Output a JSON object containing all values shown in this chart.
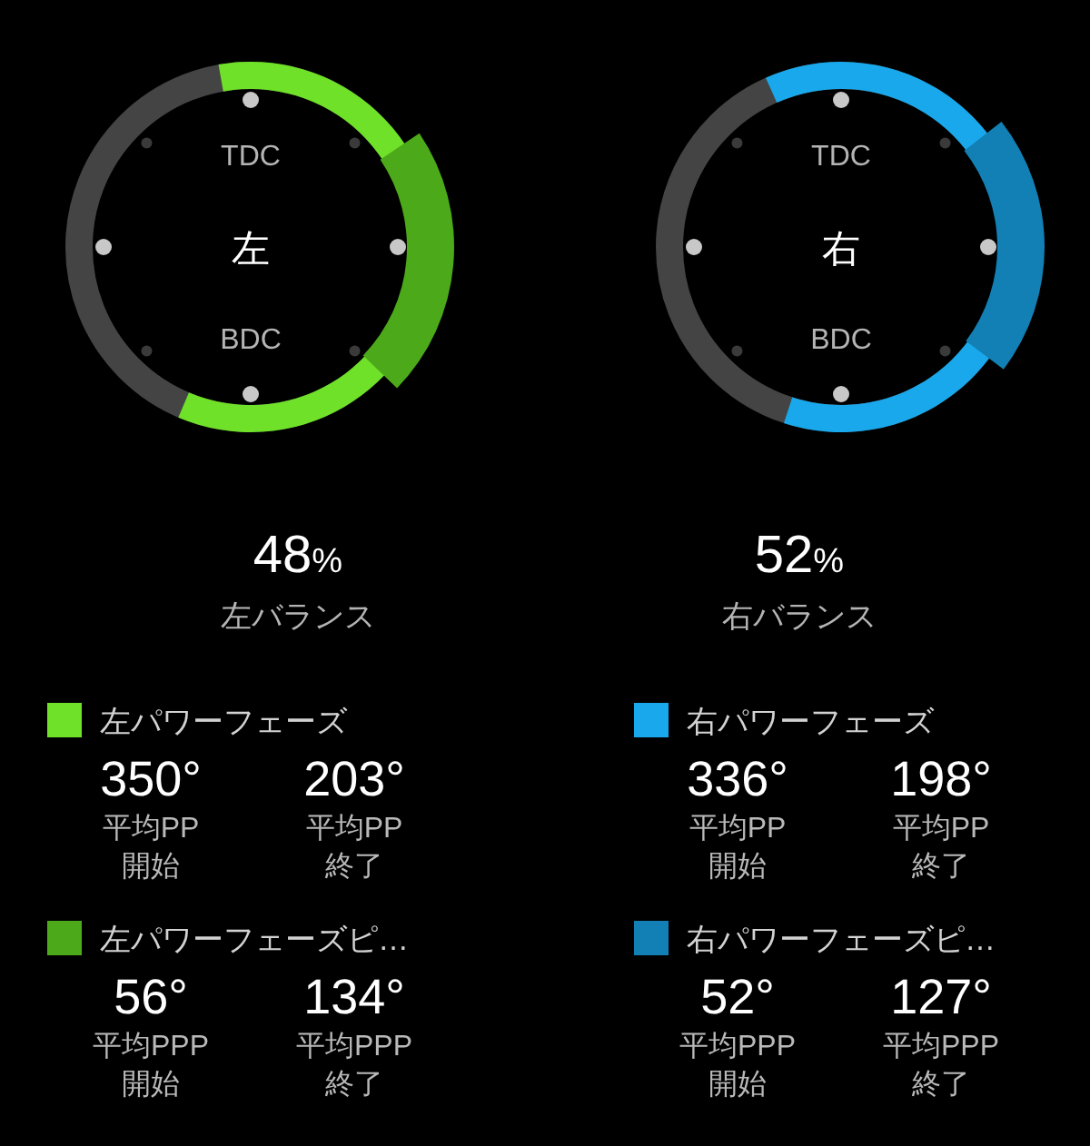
{
  "chart_data": [
    {
      "type": "other",
      "title": "左",
      "annotations": [
        "TDC",
        "BDC",
        "平均PP",
        "平均PPP"
      ],
      "categories": [
        "開始",
        "終了"
      ],
      "series": [
        {
          "name": "左パワーフェーズ",
          "color": "#6ee128",
          "values": [
            350,
            203
          ],
          "value_labels": [
            "350°",
            "203°"
          ]
        },
        {
          "name": "左パワーフェーズピ…",
          "color": "#4caa1a",
          "values": [
            56,
            134
          ],
          "value_labels": [
            "56°",
            "134°"
          ]
        }
      ]
    },
    {
      "type": "other",
      "title": "右",
      "annotations": [
        "TDC",
        "BDC",
        "平均PP",
        "平均PPP"
      ],
      "categories": [
        "開始",
        "終了"
      ],
      "series": [
        {
          "name": "右パワーフェーズ",
          "color": "#18a8eb",
          "values": [
            336,
            198
          ],
          "value_labels": [
            "336°",
            "198°"
          ]
        },
        {
          "name": "右パワーフェーズピ…",
          "color": "#1280b4",
          "values": [
            52,
            127
          ],
          "value_labels": [
            "52°",
            "127°"
          ]
        }
      ]
    },
    {
      "type": "other",
      "categories": [
        "左バランス",
        "右バランス"
      ],
      "values": [
        48,
        52
      ],
      "value_labels": [
        "48%",
        "52%"
      ]
    }
  ]
}
